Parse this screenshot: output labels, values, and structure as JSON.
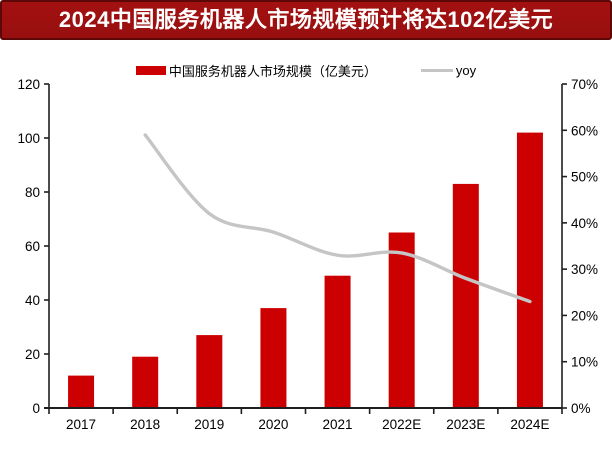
{
  "title": {
    "text": "2024中国服务机器人市场规模预计将达102亿美元"
  },
  "colors": {
    "bar": "#cc0000",
    "line": "#c5c5c5",
    "title_bg": "#a31111",
    "title_border": "#5c0808",
    "title_text": "#ffffff",
    "axis": "#1f1f1f",
    "tick_text": "#000000"
  },
  "legend": {
    "items": [
      {
        "label": "中国服务机器人市场规模（亿美元）",
        "type": "bar"
      },
      {
        "label": "yoy",
        "type": "line"
      }
    ]
  },
  "chart_data": {
    "type": "bar+line",
    "title": "2024中国服务机器人市场规模预计将达102亿美元",
    "categories": [
      "2017",
      "2018",
      "2019",
      "2020",
      "2021",
      "2022E",
      "2023E",
      "2024E"
    ],
    "series": [
      {
        "name": "中国服务机器人市场规模（亿美元）",
        "type": "bar",
        "axis": "left",
        "values": [
          12,
          19,
          27,
          37,
          49,
          65,
          83,
          102
        ]
      },
      {
        "name": "yoy",
        "type": "line",
        "axis": "right",
        "values": [
          null,
          0.59,
          0.42,
          0.38,
          0.33,
          0.335,
          0.28,
          0.23
        ]
      }
    ],
    "left_axis": {
      "min": 0,
      "max": 120,
      "step": 20,
      "ticks": [
        "0",
        "20",
        "40",
        "60",
        "80",
        "100",
        "120"
      ]
    },
    "right_axis": {
      "min": 0,
      "max": 0.7,
      "step": 0.1,
      "ticks": [
        "0%",
        "10%",
        "20%",
        "30%",
        "40%",
        "50%",
        "60%",
        "70%"
      ]
    },
    "grid": false,
    "legend_position": "top"
  }
}
